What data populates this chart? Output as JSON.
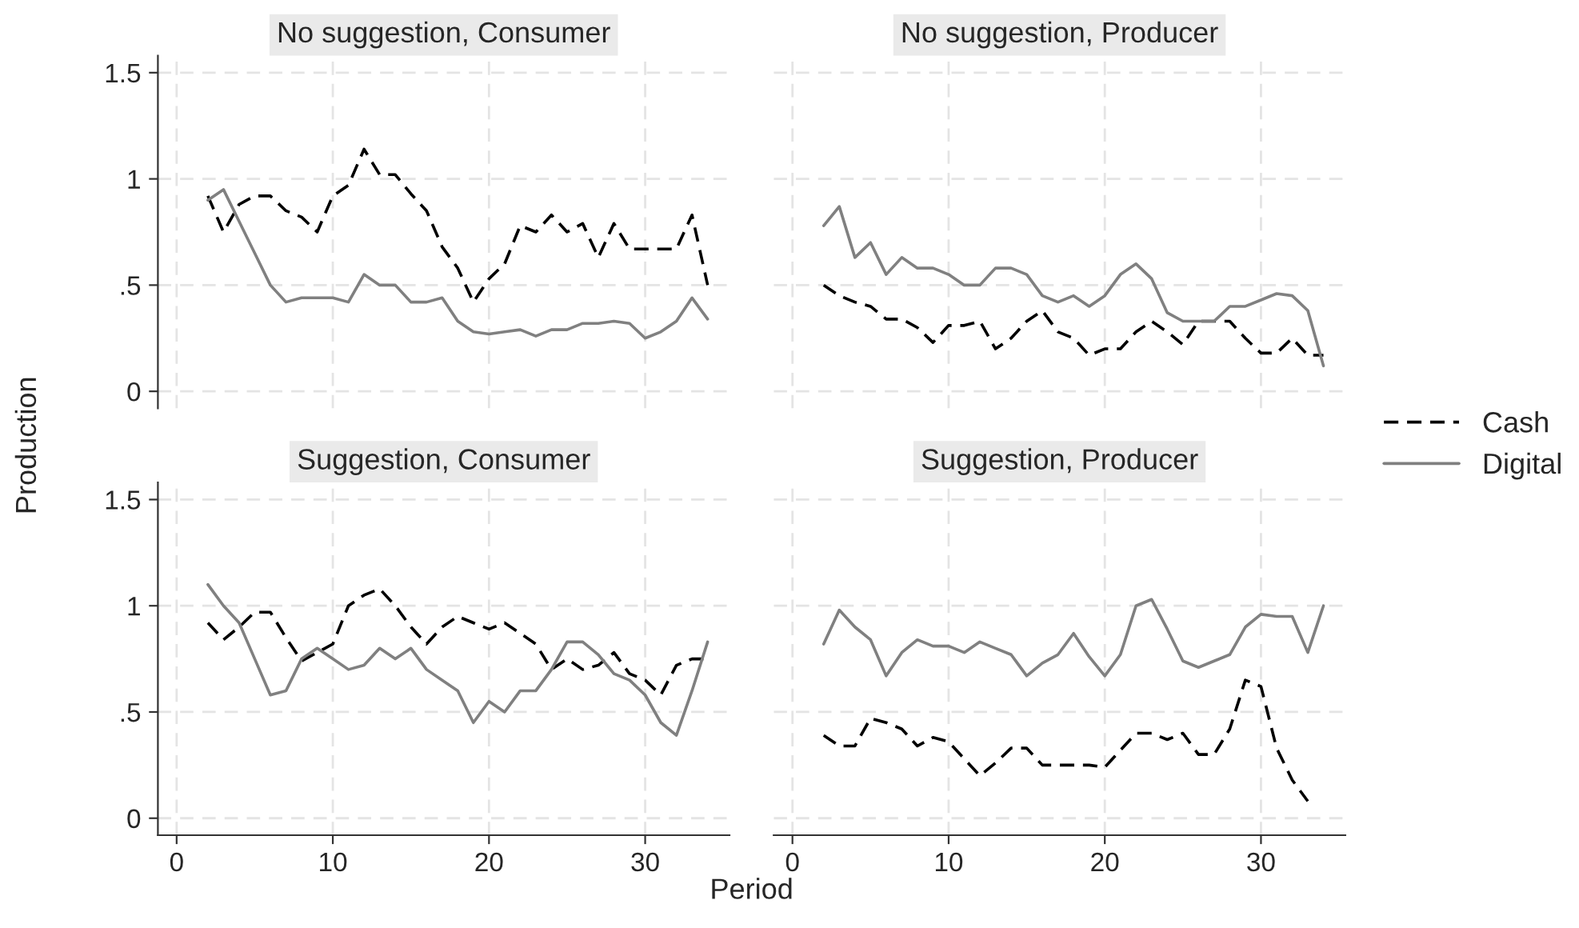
{
  "chart_data": [
    {
      "type": "line",
      "title": "No suggestion, Consumer",
      "ylabel": "Production",
      "x": [
        2,
        3,
        4,
        5,
        6,
        7,
        8,
        9,
        10,
        11,
        12,
        13,
        14,
        15,
        16,
        17,
        18,
        19,
        20,
        21,
        22,
        23,
        24,
        25,
        26,
        27,
        28,
        29,
        30,
        31,
        32,
        33,
        34
      ],
      "xlim": [
        -1.2,
        35.4
      ],
      "xticks": [
        0,
        10,
        20,
        30
      ],
      "ylim": [
        -0.08,
        1.58
      ],
      "yticks": [
        0,
        {
          "value": 0.5,
          "label": ".5"
        },
        1,
        1.5
      ],
      "tick_labels": "y",
      "grid": true,
      "legend": "right",
      "series": [
        {
          "name": "Cash",
          "color": "#000000",
          "line_style": "dashed",
          "values": [
            0.92,
            0.75,
            0.88,
            0.92,
            0.92,
            0.85,
            0.82,
            0.75,
            0.92,
            0.97,
            1.14,
            1.02,
            1.02,
            0.93,
            0.85,
            0.68,
            0.58,
            0.42,
            0.53,
            0.6,
            0.78,
            0.75,
            0.83,
            0.75,
            0.79,
            0.63,
            0.79,
            0.67,
            0.67,
            0.67,
            0.67,
            0.83,
            0.5
          ]
        },
        {
          "name": "Digital",
          "color": "#808080",
          "line_style": "solid",
          "values": [
            0.9,
            0.95,
            0.8,
            0.65,
            0.5,
            0.42,
            0.44,
            0.44,
            0.44,
            0.42,
            0.55,
            0.5,
            0.5,
            0.42,
            0.42,
            0.44,
            0.33,
            0.28,
            0.27,
            0.28,
            0.29,
            0.26,
            0.29,
            0.29,
            0.32,
            0.32,
            0.33,
            0.32,
            0.25,
            0.28,
            0.33,
            0.44,
            0.34
          ]
        }
      ]
    },
    {
      "type": "line",
      "title": "No suggestion, Producer",
      "x": [
        2,
        3,
        4,
        5,
        6,
        7,
        8,
        9,
        10,
        11,
        12,
        13,
        14,
        15,
        16,
        17,
        18,
        19,
        20,
        21,
        22,
        23,
        24,
        25,
        26,
        27,
        28,
        29,
        30,
        31,
        32,
        33,
        34
      ],
      "xlim": [
        -1.2,
        35.4
      ],
      "xticks": [
        0,
        10,
        20,
        30
      ],
      "ylim": [
        -0.08,
        1.58
      ],
      "yticks": [
        0,
        0.5,
        1,
        1.5
      ],
      "tick_labels": false,
      "grid": true,
      "series": [
        {
          "color": "#000000",
          "line_style": "dashed",
          "values": [
            0.5,
            0.45,
            0.42,
            0.4,
            0.34,
            0.34,
            0.3,
            0.23,
            0.31,
            0.31,
            0.33,
            0.2,
            0.25,
            0.33,
            0.38,
            0.28,
            0.25,
            0.17,
            0.2,
            0.2,
            0.28,
            0.33,
            0.28,
            0.22,
            0.33,
            0.33,
            0.33,
            0.25,
            0.18,
            0.18,
            0.25,
            0.17,
            0.17
          ]
        },
        {
          "color": "#808080",
          "line_style": "solid",
          "values": [
            0.78,
            0.87,
            0.63,
            0.7,
            0.55,
            0.63,
            0.58,
            0.58,
            0.55,
            0.5,
            0.5,
            0.58,
            0.58,
            0.55,
            0.45,
            0.42,
            0.45,
            0.4,
            0.45,
            0.55,
            0.6,
            0.53,
            0.37,
            0.33,
            0.33,
            0.33,
            0.4,
            0.4,
            0.43,
            0.46,
            0.45,
            0.38,
            0.12
          ]
        }
      ]
    },
    {
      "type": "line",
      "title": "Suggestion, Consumer",
      "xlabel": "Period",
      "x": [
        2,
        3,
        4,
        5,
        6,
        7,
        8,
        9,
        10,
        11,
        12,
        13,
        14,
        15,
        16,
        17,
        18,
        19,
        20,
        21,
        22,
        23,
        24,
        25,
        26,
        27,
        28,
        29,
        30,
        31,
        32,
        33,
        34
      ],
      "xlim": [
        -1.2,
        35.4
      ],
      "xticks": [
        0,
        10,
        20,
        30
      ],
      "ylim": [
        -0.08,
        1.58
      ],
      "yticks": [
        0,
        {
          "value": 0.5,
          "label": ".5"
        },
        1,
        1.5
      ],
      "grid": true,
      "series": [
        {
          "color": "#000000",
          "line_style": "dashed",
          "values": [
            0.92,
            0.84,
            0.9,
            0.97,
            0.97,
            0.85,
            0.74,
            0.78,
            0.82,
            1.0,
            1.05,
            1.08,
            1.0,
            0.9,
            0.82,
            0.9,
            0.95,
            0.92,
            0.89,
            0.92,
            0.87,
            0.82,
            0.7,
            0.75,
            0.7,
            0.72,
            0.78,
            0.68,
            0.65,
            0.58,
            0.72,
            0.75,
            0.75
          ]
        },
        {
          "color": "#808080",
          "line_style": "solid",
          "values": [
            1.1,
            1.0,
            0.92,
            0.75,
            0.58,
            0.6,
            0.75,
            0.8,
            0.75,
            0.7,
            0.72,
            0.8,
            0.75,
            0.8,
            0.7,
            0.65,
            0.6,
            0.45,
            0.55,
            0.5,
            0.6,
            0.6,
            0.7,
            0.83,
            0.83,
            0.77,
            0.68,
            0.65,
            0.58,
            0.45,
            0.39,
            0.6,
            0.83
          ]
        }
      ]
    },
    {
      "type": "line",
      "title": "Suggestion, Producer",
      "x": [
        2,
        3,
        4,
        5,
        6,
        7,
        8,
        9,
        10,
        11,
        12,
        13,
        14,
        15,
        16,
        17,
        18,
        19,
        20,
        21,
        22,
        23,
        24,
        25,
        26,
        27,
        28,
        29,
        30,
        31,
        32,
        33,
        34
      ],
      "xlim": [
        -1.2,
        35.4
      ],
      "xticks": [
        0,
        10,
        20,
        30
      ],
      "ylim": [
        -0.08,
        1.58
      ],
      "yticks": [
        0,
        0.5,
        1,
        1.5
      ],
      "tick_labels": "x",
      "grid": true,
      "series": [
        {
          "color": "#000000",
          "line_style": "dashed",
          "values": [
            0.39,
            0.34,
            0.34,
            0.47,
            0.45,
            0.42,
            0.34,
            0.38,
            0.36,
            0.28,
            0.2,
            0.26,
            0.33,
            0.33,
            0.25,
            0.25,
            0.25,
            0.25,
            0.24,
            0.32,
            0.4,
            0.4,
            0.37,
            0.4,
            0.3,
            0.3,
            0.42,
            0.65,
            0.62,
            0.33,
            0.18,
            0.08,
            null
          ]
        },
        {
          "color": "#808080",
          "line_style": "solid",
          "values": [
            0.82,
            0.98,
            0.9,
            0.84,
            0.67,
            0.78,
            0.84,
            0.81,
            0.81,
            0.78,
            0.83,
            0.8,
            0.77,
            0.67,
            0.73,
            0.77,
            0.87,
            0.76,
            0.67,
            0.77,
            1.0,
            1.03,
            0.89,
            0.74,
            0.71,
            0.74,
            0.77,
            0.9,
            0.96,
            0.95,
            0.95,
            0.78,
            1.0
          ]
        }
      ]
    }
  ]
}
